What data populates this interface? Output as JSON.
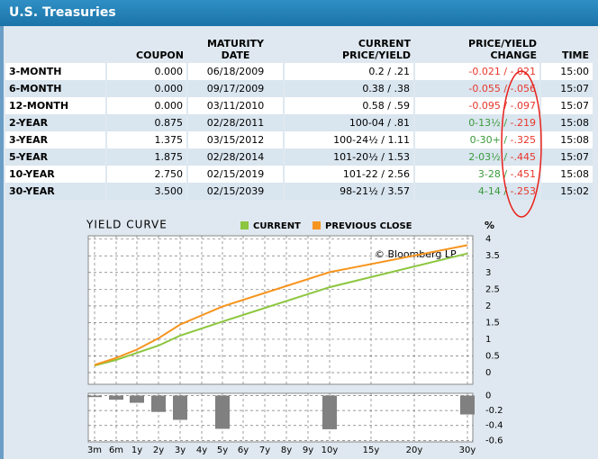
{
  "header": {
    "title": "U.S. Treasuries"
  },
  "table": {
    "columns": [
      [
        "COUPON"
      ],
      [
        "MATURITY",
        "DATE"
      ],
      [
        "CURRENT",
        "PRICE/YIELD"
      ],
      [
        "PRICE/YIELD",
        "CHANGE"
      ],
      [
        "TIME"
      ]
    ],
    "rows": [
      {
        "label": "3-MONTH",
        "coupon": "0.000",
        "maturity": "06/18/2009",
        "current": "0.2 / .21",
        "price_change": "-0.021",
        "yield_change": "-.021",
        "time": "15:00"
      },
      {
        "label": "6-MONTH",
        "coupon": "0.000",
        "maturity": "09/17/2009",
        "current": "0.38 / .38",
        "price_change": "-0.055",
        "yield_change": "-.056",
        "time": "15:07"
      },
      {
        "label": "12-MONTH",
        "coupon": "0.000",
        "maturity": "03/11/2010",
        "current": "0.58 / .59",
        "price_change": "-0.095",
        "yield_change": "-.097",
        "time": "15:07"
      },
      {
        "label": "2-YEAR",
        "coupon": "0.875",
        "maturity": "02/28/2011",
        "current": "100-04 / .81",
        "price_change": "0-13½",
        "yield_change": "-.219",
        "time": "15:08"
      },
      {
        "label": "3-YEAR",
        "coupon": "1.375",
        "maturity": "03/15/2012",
        "current": "100-24½ / 1.11",
        "price_change": "0-30+",
        "yield_change": "-.325",
        "time": "15:08"
      },
      {
        "label": "5-YEAR",
        "coupon": "1.875",
        "maturity": "02/28/2014",
        "current": "101-20½ / 1.53",
        "price_change": "2-03½",
        "yield_change": "-.445",
        "time": "15:07"
      },
      {
        "label": "10-YEAR",
        "coupon": "2.750",
        "maturity": "02/15/2019",
        "current": "101-22 / 2.56",
        "price_change": "3-28",
        "yield_change": "-.451",
        "time": "15:08"
      },
      {
        "label": "30-YEAR",
        "coupon": "3.500",
        "maturity": "02/15/2039",
        "current": "98-21½ / 3.57",
        "price_change": "4-14",
        "yield_change": "-.253",
        "time": "15:02"
      }
    ]
  },
  "chart_data": [
    {
      "type": "line",
      "title": "YIELD CURVE",
      "y_label": "%",
      "annotation": "© Bloomberg LP",
      "x": [
        0.25,
        0.5,
        1,
        2,
        3,
        5,
        10,
        30
      ],
      "series": [
        {
          "name": "CURRENT",
          "color": "#8cc63e",
          "values": [
            0.21,
            0.38,
            0.59,
            0.81,
            1.11,
            1.53,
            2.56,
            3.57
          ]
        },
        {
          "name": "PREVIOUS CLOSE",
          "color": "#f7941d",
          "values": [
            0.23,
            0.44,
            0.69,
            1.03,
            1.44,
            1.98,
            3.01,
            3.82
          ]
        }
      ],
      "xlim": [
        0.25,
        30
      ],
      "xticks": [
        0.25,
        0.5,
        1,
        2,
        3,
        4,
        5,
        6,
        7,
        8,
        9,
        10,
        15,
        20,
        30
      ],
      "ylim": [
        -0.35,
        4.1
      ],
      "yticks": [
        0,
        0.5,
        1,
        1.5,
        2,
        2.5,
        3,
        3.5,
        4
      ],
      "grid": true
    },
    {
      "type": "bar",
      "x": [
        0.25,
        0.5,
        1,
        2,
        3,
        5,
        10,
        30
      ],
      "values": [
        -0.021,
        -0.056,
        -0.097,
        -0.219,
        -0.325,
        -0.445,
        -0.451,
        -0.253
      ],
      "color": "#808080",
      "xlim": [
        0.25,
        30
      ],
      "xticks": [
        {
          "value": 0.25,
          "label": "3m"
        },
        {
          "value": 0.5,
          "label": "6m"
        },
        {
          "value": 1,
          "label": "1y"
        },
        {
          "value": 2,
          "label": "2y"
        },
        {
          "value": 3,
          "label": "3y"
        },
        {
          "value": 4,
          "label": "4y"
        },
        {
          "value": 5,
          "label": "5y"
        },
        {
          "value": 6,
          "label": "6y"
        },
        {
          "value": 7,
          "label": "7y"
        },
        {
          "value": 8,
          "label": "8y"
        },
        {
          "value": 9,
          "label": "9y"
        },
        {
          "value": 10,
          "label": "10y"
        },
        {
          "value": 15,
          "label": "15y"
        },
        {
          "value": 20,
          "label": "20y"
        },
        {
          "value": 30,
          "label": "30y"
        }
      ],
      "ylim": [
        -0.62,
        0.03
      ],
      "yticks": [
        0,
        -0.2,
        -0.4,
        -0.6
      ],
      "grid": true
    }
  ]
}
